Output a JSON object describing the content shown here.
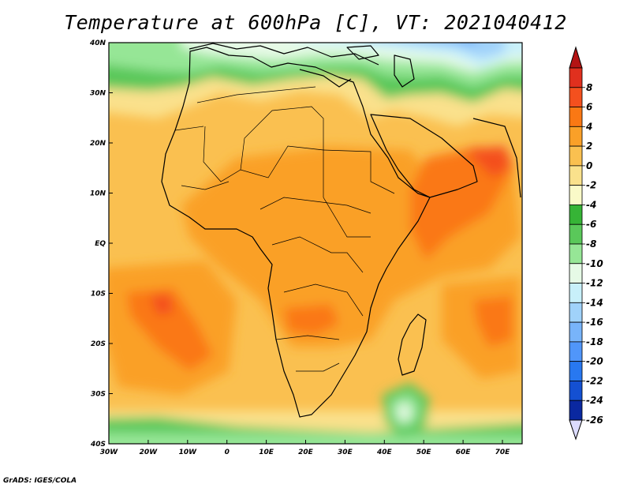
{
  "title": "Temperature at 600hPa [C], VT: 2021040412",
  "credit": "GrADS: IGES/COLA",
  "map": {
    "lat_ticks": [
      "40N",
      "30N",
      "20N",
      "10N",
      "EQ",
      "10S",
      "20S",
      "30S",
      "40S"
    ],
    "lon_ticks": [
      "30W",
      "20W",
      "10W",
      "0",
      "10E",
      "20E",
      "30E",
      "40E",
      "50E",
      "60E",
      "70E"
    ]
  },
  "colorbar": {
    "labels": [
      "8",
      "6",
      "4",
      "2",
      "0",
      "-2",
      "-4",
      "-6",
      "-8",
      "-10",
      "-12",
      "-14",
      "-16",
      "-18",
      "-20",
      "-22",
      "-24",
      "-26"
    ],
    "colors": [
      "#e0301e",
      "#f4501e",
      "#fa7814",
      "#faa028",
      "#fac050",
      "#fae18c",
      "#fafac8",
      "#36b436",
      "#5ac85a",
      "#96e696",
      "#e6fae6",
      "#c8f0fa",
      "#a0d2fa",
      "#78b4fa",
      "#5096fa",
      "#2878f0",
      "#1450d2",
      "#0a28a0"
    ],
    "top_arrow_color": "#b41414",
    "bottom_arrow_color": "#dcdcff"
  }
}
